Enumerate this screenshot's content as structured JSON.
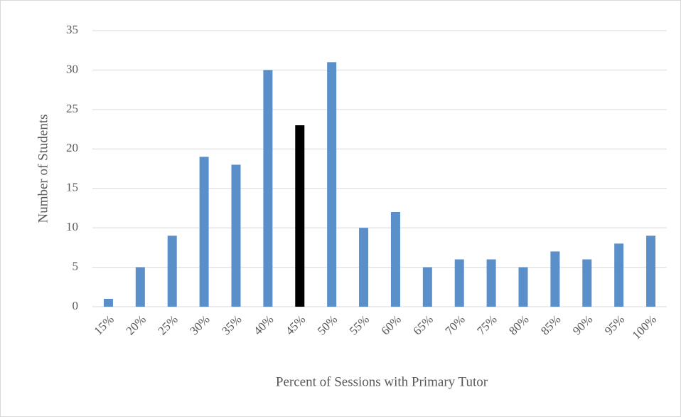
{
  "chart_data": {
    "type": "bar",
    "x_label": "Percent of Sessions with Primary Tutor",
    "y_label": "Number of Students",
    "categories": [
      "15%",
      "20%",
      "25%",
      "30%",
      "35%",
      "40%",
      "45%",
      "50%",
      "55%",
      "60%",
      "65%",
      "70%",
      "75%",
      "80%",
      "85%",
      "90%",
      "95%",
      "100%"
    ],
    "values": [
      1,
      5,
      9,
      19,
      18,
      30,
      23,
      31,
      10,
      12,
      5,
      6,
      6,
      5,
      7,
      6,
      8,
      9
    ],
    "colors": [
      "#5b8fc9",
      "#5b8fc9",
      "#5b8fc9",
      "#5b8fc9",
      "#5b8fc9",
      "#5b8fc9",
      "#000000",
      "#5b8fc9",
      "#5b8fc9",
      "#5b8fc9",
      "#5b8fc9",
      "#5b8fc9",
      "#5b8fc9",
      "#5b8fc9",
      "#5b8fc9",
      "#5b8fc9",
      "#5b8fc9",
      "#5b8fc9"
    ],
    "ylim": [
      0,
      35
    ],
    "yticks": [
      0,
      5,
      10,
      15,
      20,
      25,
      30,
      35
    ],
    "grid": true
  }
}
